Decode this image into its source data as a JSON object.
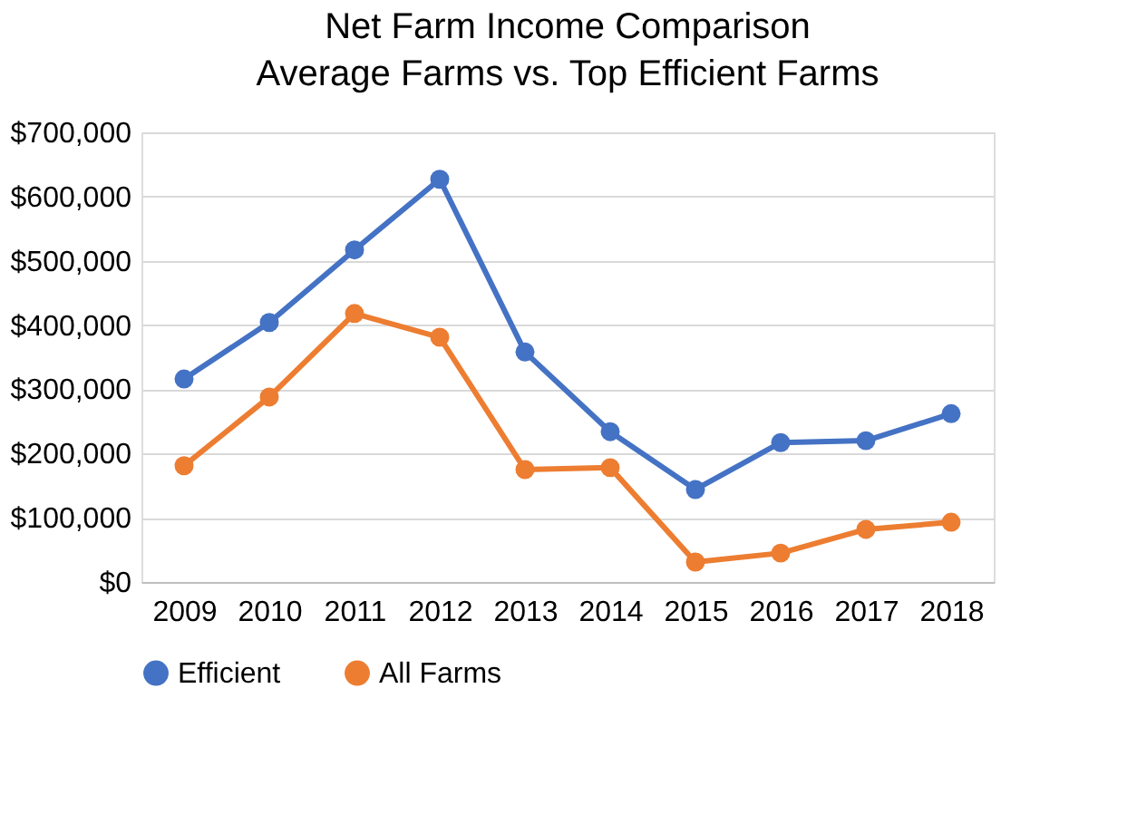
{
  "chart_data": {
    "type": "line",
    "title": "Net Farm Income Comparison",
    "subtitle": "Average Farms vs. Top Efficient Farms",
    "categories": [
      "2009",
      "2010",
      "2011",
      "2012",
      "2013",
      "2014",
      "2015",
      "2016",
      "2017",
      "2018"
    ],
    "series": [
      {
        "name": "Efficient",
        "color": "#4472c4",
        "values": [
          316000,
          404000,
          517000,
          627000,
          358000,
          234000,
          144000,
          217000,
          220000,
          262000
        ]
      },
      {
        "name": "All Farms",
        "color": "#ed7d31",
        "values": [
          181000,
          288000,
          418000,
          381000,
          175000,
          178000,
          31000,
          45000,
          82000,
          93000
        ]
      }
    ],
    "ylim": [
      0,
      700000
    ],
    "yticks": [
      {
        "value": 0,
        "label": "$0"
      },
      {
        "value": 100000,
        "label": "$100,000"
      },
      {
        "value": 200000,
        "label": "$200,000"
      },
      {
        "value": 300000,
        "label": "$300,000"
      },
      {
        "value": 400000,
        "label": "$400,000"
      },
      {
        "value": 500000,
        "label": "$500,000"
      },
      {
        "value": 600000,
        "label": "$600,000"
      },
      {
        "value": 700000,
        "label": "$700,000"
      }
    ],
    "grid": "y",
    "legend": "bottom",
    "marker": "circle",
    "line_style": "solid"
  }
}
